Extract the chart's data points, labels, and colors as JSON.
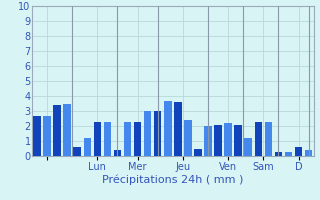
{
  "bar_values": [
    2.7,
    2.7,
    3.4,
    3.5,
    0.6,
    1.2,
    2.3,
    2.3,
    0.4,
    2.3,
    2.3,
    3.0,
    3.0,
    3.7,
    3.6,
    2.4,
    0.5,
    2.0,
    2.1,
    2.2,
    2.1,
    1.2,
    2.3,
    2.3,
    0.3,
    0.3,
    0.6,
    0.4
  ],
  "bar_dark": "#1144bb",
  "bar_light": "#4488ee",
  "day_labels": [
    "",
    "Lun",
    "Mer",
    "Jeu",
    "Ven",
    "Sam",
    "D"
  ],
  "day_tick_positions": [
    1.5,
    6.5,
    10.5,
    15.0,
    19.5,
    23.0,
    26.5
  ],
  "day_separators_x": [
    4.0,
    8.5,
    12.5,
    17.5,
    21.0,
    24.5,
    27.5
  ],
  "xlabel": "Précipitations 24h ( mm )",
  "ylim": [
    0,
    10
  ],
  "yticks": [
    0,
    1,
    2,
    3,
    4,
    5,
    6,
    7,
    8,
    9,
    10
  ],
  "background_color": "#d8f4f4",
  "grid_color": "#b8d8d8",
  "bar_width": 0.75,
  "xlabel_fontsize": 8,
  "tick_fontsize": 7,
  "label_color": "#3355bb",
  "sep_color": "#8899aa"
}
